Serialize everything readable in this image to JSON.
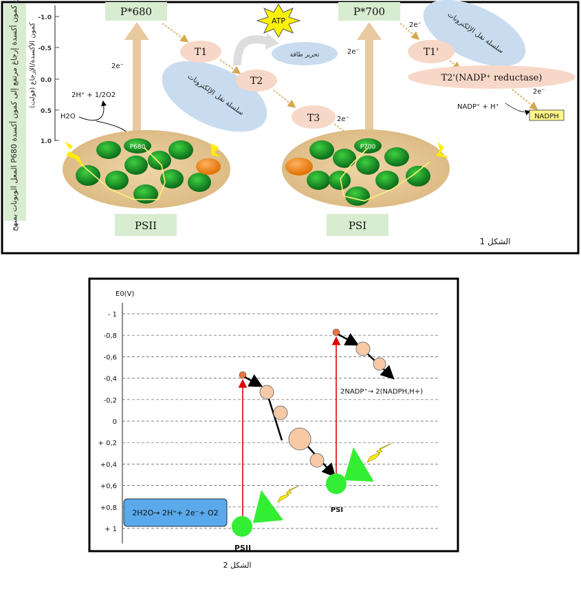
{
  "figure1": {
    "side_label": "المعل الوبونات بمبهح P680 من كمون أكسدة إرجاع مرتفع إلى كمون أكسدة",
    "axis_title": "كمون الأكسدة/الإرجاع (فولت)",
    "ticks": [
      "-1.0",
      "-0.5",
      "0.0",
      "0.5",
      "1.0"
    ],
    "p680": "P*680",
    "p700": "P*700",
    "psii": "PSII",
    "psi": "PSI",
    "center_p680": "P680",
    "center_p700": "P700",
    "t1": "T1",
    "t2": "T2",
    "t3": "T3",
    "t1p": "T1'",
    "t2p": "T2'(NADP⁺ reductase)",
    "atp": "ATP",
    "energy": "تحرير طاقة",
    "chain_a": "سلسلة نقل الإلكترونات",
    "chain_b": "سلسلة نقل الإلكترونات",
    "e2a": "2e⁻",
    "e2b": "2e⁻",
    "e2c": "2e⁻",
    "e2d": "2e⁻",
    "e2e": "2e⁻",
    "water_products": "2H⁺ + 1/2O2",
    "water": "H2O",
    "nadp": "NADP⁺ + H⁺",
    "nadph": "NADPH",
    "caption": "الشكل 1",
    "colors": {
      "green_box": "#d8ecd0",
      "tan": "#e8c9a0",
      "peach": "#f7d8c8",
      "blue_cloud": "#c9dcef",
      "nadph_bg": "#fff68a"
    }
  },
  "figure2": {
    "y_label": "E0(V)",
    "ticks": [
      "- 1",
      "-0,8",
      "-0,6",
      "-0,4",
      "-0,2",
      "0",
      "+ 0,2",
      "+0,4",
      "+0,6",
      "+0,8",
      "+ 1"
    ],
    "psii": "PSII",
    "psi": "PSI",
    "water_eq": "2H2O→ 2H⁺+ 2e⁻+ O2",
    "nadp_eq": "2NADP⁺→ 2(NADPH,H+)",
    "caption": "الشكل 2",
    "colors": {
      "green": "#33ee33",
      "peach": "#f7c9a4",
      "red": "#dd0000",
      "blue_box": "#5aa9ea",
      "yellow": "#ffee00"
    }
  }
}
